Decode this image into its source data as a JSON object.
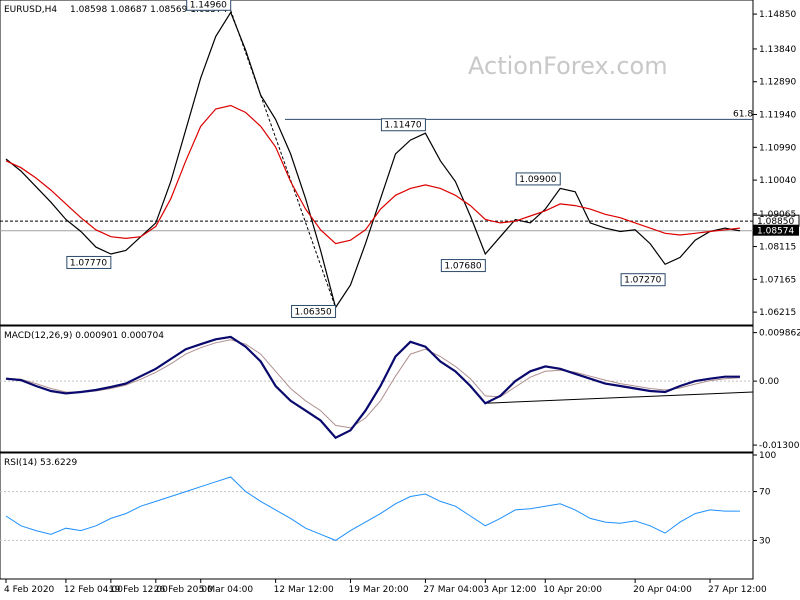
{
  "header": {
    "symbol": "EURUSD,H4",
    "ohlc": "1.08598 1.08687 1.08569 1.08574",
    "watermark": "ActionForex.com",
    "macd_label": "MACD(12,26,9) 0.000901 0.000704",
    "rsi_label": "RSI(14) 53.6229"
  },
  "colors": {
    "price": "#000000",
    "ma": "#dd0000",
    "macd_line": "#0a0a6e",
    "macd_signal": "#b09090",
    "rsi": "#1e90ff",
    "grid": "#c0c0c0",
    "level_line": "#2b4a6b"
  },
  "chart_data": [
    {
      "type": "line",
      "panel": "price",
      "ylim": [
        1.059,
        1.152
      ],
      "y_ticks": [
        "1.14850",
        "1.13840",
        "1.12890",
        "1.11940",
        "1.10990",
        "1.10040",
        "1.09065",
        "1.08115",
        "1.07165",
        "1.06215"
      ],
      "y_tick_values": [
        1.1485,
        1.1384,
        1.1289,
        1.1194,
        1.1099,
        1.1004,
        1.09065,
        1.08115,
        1.07165,
        1.06215
      ],
      "fib_label": "61.8",
      "fib_level": 1.118,
      "dashed_level": 1.0885,
      "dashed_label": "1.08850",
      "current_price": 1.08574,
      "current_label": "1.08574",
      "x": [
        "4 Feb 2020",
        "6 Feb",
        "8 Feb",
        "11 Feb",
        "12 Feb 04:00",
        "14 Feb",
        "17 Feb",
        "19 Feb 12:00",
        "21 Feb",
        "24 Feb",
        "26 Feb 20:00",
        "28 Feb",
        "2 Mar",
        "5 Mar 04:00",
        "6 Mar",
        "9 Mar",
        "10 Mar",
        "11 Mar",
        "12 Mar 12:00",
        "13 Mar",
        "16 Mar",
        "17 Mar",
        "18 Mar",
        "19 Mar 20:00",
        "20 Mar",
        "23 Mar",
        "24 Mar",
        "25 Mar",
        "27 Mar 04:00",
        "30 Mar",
        "31 Mar",
        "1 Apr",
        "3 Apr 12:00",
        "6 Apr",
        "7 Apr",
        "8 Apr",
        "10 Apr 20:00",
        "13 Apr",
        "14 Apr",
        "15 Apr",
        "16 Apr",
        "17 Apr",
        "20 Apr 04:00",
        "21 Apr",
        "22 Apr",
        "23 Apr",
        "24 Apr",
        "27 Apr 12:00",
        "28 Apr",
        "29 Apr"
      ],
      "series": [
        {
          "values": [
            1.1065,
            1.103,
            1.0985,
            1.094,
            1.089,
            1.0855,
            1.081,
            1.079,
            1.08,
            1.084,
            1.088,
            1.1,
            1.115,
            1.13,
            1.142,
            1.149,
            1.138,
            1.125,
            1.118,
            1.108,
            1.095,
            1.08,
            1.0635,
            1.07,
            1.082,
            1.095,
            1.108,
            1.112,
            1.114,
            1.106,
            1.1,
            1.09,
            1.079,
            1.084,
            1.089,
            1.088,
            1.092,
            1.098,
            1.097,
            1.088,
            1.0865,
            1.0855,
            1.086,
            1.082,
            1.076,
            1.078,
            1.083,
            1.0855,
            1.0865,
            1.0857
          ]
        },
        {
          "values": [
            1.106,
            1.104,
            1.101,
            1.0975,
            1.0935,
            1.0895,
            1.086,
            1.084,
            1.0835,
            1.084,
            1.087,
            1.095,
            1.106,
            1.116,
            1.121,
            1.122,
            1.12,
            1.116,
            1.11,
            1.1,
            1.092,
            1.086,
            1.082,
            1.083,
            1.086,
            1.092,
            1.096,
            1.098,
            1.099,
            1.098,
            1.096,
            1.093,
            1.089,
            1.088,
            1.0885,
            1.09,
            1.0915,
            1.0935,
            1.093,
            1.092,
            1.0905,
            1.0895,
            1.088,
            1.0865,
            1.085,
            1.0845,
            1.085,
            1.0855,
            1.086,
            1.0865
          ]
        }
      ],
      "annotations": [
        {
          "text": "1.14960",
          "x_index": 15,
          "y": 1.1496,
          "pos": "left"
        },
        {
          "text": "1.07770",
          "x_index": 7,
          "y": 1.0777,
          "pos": "left"
        },
        {
          "text": "1.06350",
          "x_index": 22,
          "y": 1.0635,
          "pos": "left"
        },
        {
          "text": "1.11470",
          "x_index": 28,
          "y": 1.1147,
          "pos": "left"
        },
        {
          "text": "1.07680",
          "x_index": 32,
          "y": 1.0768,
          "pos": "left"
        },
        {
          "text": "1.09900",
          "x_index": 37,
          "y": 1.099,
          "pos": "left"
        },
        {
          "text": "1.07270",
          "x_index": 44,
          "y": 1.0727,
          "pos": "left"
        }
      ]
    },
    {
      "type": "line",
      "panel": "macd",
      "ylim": [
        -0.014,
        0.0108
      ],
      "y_ticks": [
        "0.009862",
        "0.00",
        "-0.013002"
      ],
      "y_tick_values": [
        0.009862,
        0.0,
        -0.013002
      ],
      "series": [
        {
          "values": [
            0.0005,
            0.0002,
            -0.001,
            -0.002,
            -0.0025,
            -0.0022,
            -0.0018,
            -0.0012,
            -0.0005,
            0.001,
            0.0025,
            0.0045,
            0.0065,
            0.0075,
            0.0085,
            0.009,
            0.007,
            0.004,
            -0.001,
            -0.004,
            -0.006,
            -0.008,
            -0.0115,
            -0.01,
            -0.006,
            -0.001,
            0.005,
            0.008,
            0.007,
            0.004,
            0.002,
            -0.001,
            -0.0045,
            -0.003,
            0.0,
            0.002,
            0.003,
            0.0025,
            0.0015,
            0.0005,
            -0.0005,
            -0.001,
            -0.0015,
            -0.002,
            -0.0022,
            -0.001,
            0.0,
            0.0005,
            0.0009,
            0.0009
          ]
        },
        {
          "values": [
            0.0006,
            0.0004,
            -0.0005,
            -0.0015,
            -0.0022,
            -0.0023,
            -0.002,
            -0.0015,
            -0.0008,
            0.0004,
            0.0018,
            0.0035,
            0.0055,
            0.0068,
            0.0078,
            0.0084,
            0.0075,
            0.0055,
            0.002,
            -0.0015,
            -0.004,
            -0.006,
            -0.009,
            -0.0095,
            -0.0075,
            -0.004,
            0.001,
            0.0055,
            0.0065,
            0.005,
            0.003,
            0.0005,
            -0.003,
            -0.0032,
            -0.0012,
            0.0008,
            0.002,
            0.0022,
            0.0018,
            0.001,
            0.0002,
            -0.0005,
            -0.001,
            -0.0015,
            -0.0018,
            -0.0014,
            -0.0006,
            0.0001,
            0.0005,
            0.0007
          ]
        }
      ]
    },
    {
      "type": "line",
      "panel": "rsi",
      "ylim": [
        0,
        100
      ],
      "y_ticks": [
        "100",
        "70",
        "30",
        "0"
      ],
      "y_tick_values": [
        100,
        70,
        30,
        0
      ],
      "series": [
        {
          "values": [
            50,
            42,
            38,
            35,
            40,
            38,
            42,
            48,
            52,
            58,
            62,
            66,
            70,
            74,
            78,
            82,
            70,
            62,
            55,
            48,
            40,
            35,
            30,
            38,
            45,
            52,
            60,
            66,
            68,
            62,
            58,
            50,
            42,
            48,
            55,
            56,
            58,
            60,
            55,
            48,
            45,
            44,
            46,
            42,
            36,
            45,
            52,
            55,
            54,
            54
          ]
        }
      ]
    }
  ],
  "x_axis_labels": [
    "4 Feb 2020",
    "12 Feb 04:00",
    "19 Feb 12:00",
    "26 Feb 20:00",
    "5 Mar 04:00",
    "12 Mar 12:00",
    "19 Mar 20:00",
    "27 Mar 04:00",
    "3 Apr 12:00",
    "10 Apr 20:00",
    "20 Apr 04:00",
    "27 Apr 12:00"
  ],
  "x_axis_label_positions": [
    0,
    4,
    7,
    10,
    13,
    18,
    23,
    28,
    32,
    36,
    42,
    47
  ]
}
